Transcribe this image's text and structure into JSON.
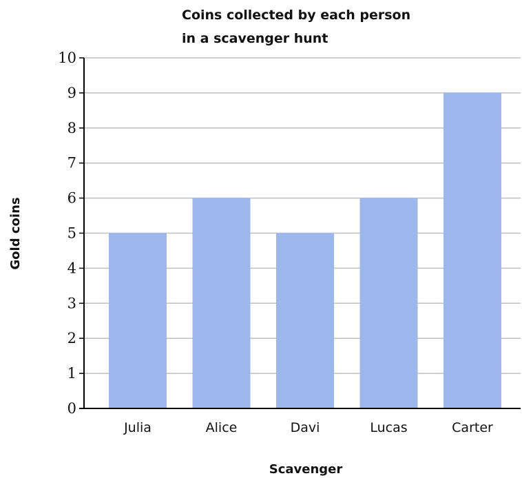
{
  "chart_data": {
    "type": "bar",
    "title_lines": [
      "Coins collected by each person",
      "in a scavenger hunt"
    ],
    "xlabel": "Scavenger",
    "ylabel": "Gold coins",
    "categories": [
      "Julia",
      "Alice",
      "Davi",
      "Lucas",
      "Carter"
    ],
    "values": [
      5,
      6,
      5,
      6,
      9
    ],
    "ylim": [
      0,
      10
    ],
    "yticks": [
      0,
      1,
      2,
      3,
      4,
      5,
      6,
      7,
      8,
      9,
      10
    ],
    "grid": true,
    "bar_color": "#9bb7ec",
    "grid_color": "#bfbfbf",
    "axis_color": "#000000"
  }
}
